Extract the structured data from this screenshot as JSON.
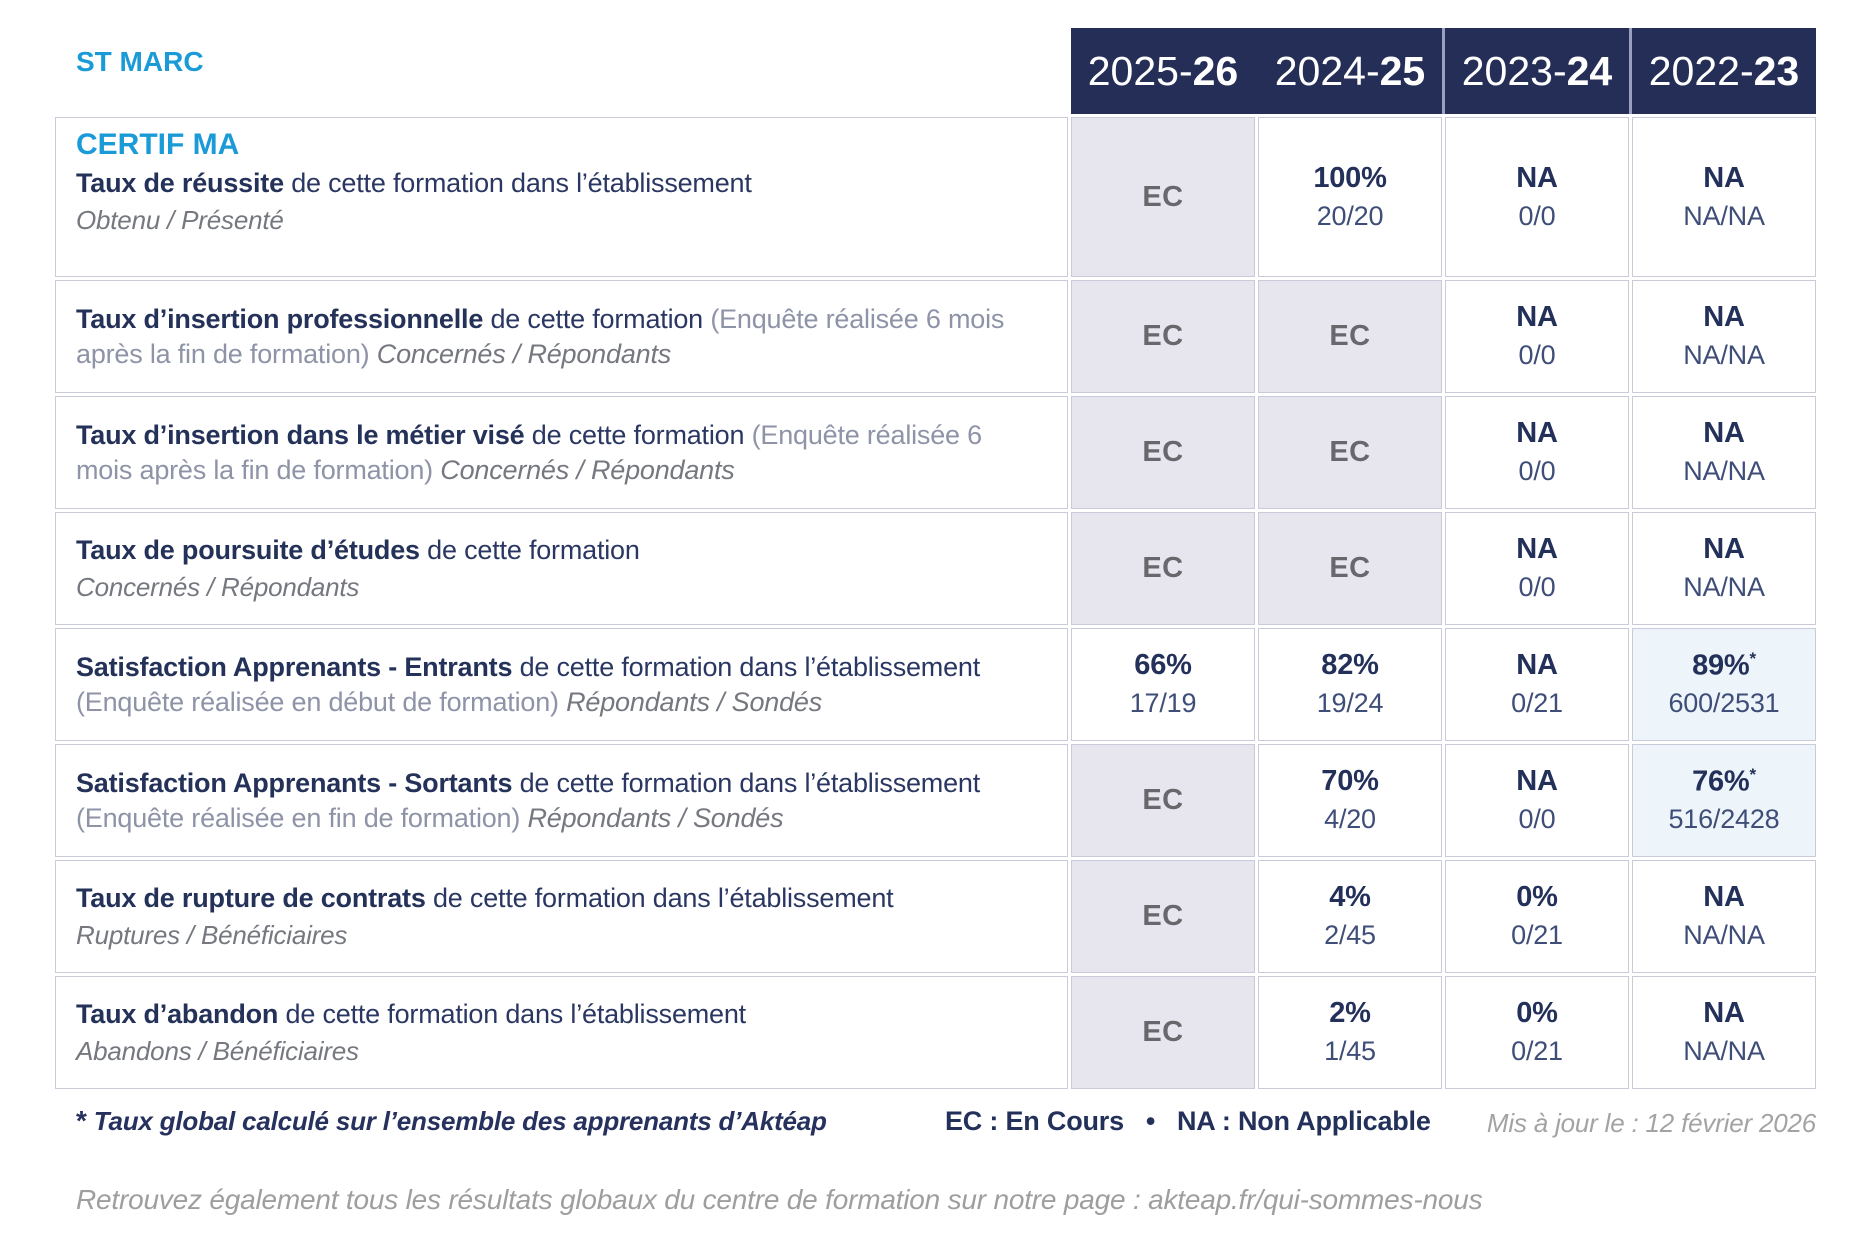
{
  "site_label": "ST MARC",
  "program_label": "CERTIF MA",
  "years": [
    {
      "prefix": "2025-",
      "suffix": "26"
    },
    {
      "prefix": "2024-",
      "suffix": "25"
    },
    {
      "prefix": "2023-",
      "suffix": "24"
    },
    {
      "prefix": "2022-",
      "suffix": "23"
    }
  ],
  "rows": [
    {
      "title_bold": "Taux de réussite",
      "title_rest": "de cette formation dans l’établissement",
      "subtitle_block": "Obtenu / Présenté",
      "cells": [
        {
          "main": "EC"
        },
        {
          "main": "100%",
          "sub": "20/20"
        },
        {
          "main": "NA",
          "sub": "0/0"
        },
        {
          "main": "NA",
          "sub": "NA/NA"
        }
      ]
    },
    {
      "title_bold": "Taux d’insertion professionnelle",
      "title_rest": "de cette formation",
      "paren": "(Enquête réalisée 6 mois après la fin de formation)",
      "subtitle_inline": "Concernés / Répondants",
      "cells": [
        {
          "main": "EC"
        },
        {
          "main": "EC"
        },
        {
          "main": "NA",
          "sub": "0/0"
        },
        {
          "main": "NA",
          "sub": "NA/NA"
        }
      ]
    },
    {
      "title_bold": "Taux d’insertion dans le métier visé",
      "title_rest": "de cette formation",
      "paren": "(Enquête réalisée 6 mois après la fin de formation)",
      "subtitle_inline": "Concernés / Répondants",
      "cells": [
        {
          "main": "EC"
        },
        {
          "main": "EC"
        },
        {
          "main": "NA",
          "sub": "0/0"
        },
        {
          "main": "NA",
          "sub": "NA/NA"
        }
      ]
    },
    {
      "title_bold": "Taux de poursuite d’études",
      "title_rest": "de cette formation",
      "subtitle_block": "Concernés / Répondants",
      "cells": [
        {
          "main": "EC"
        },
        {
          "main": "EC"
        },
        {
          "main": "NA",
          "sub": "0/0"
        },
        {
          "main": "NA",
          "sub": "NA/NA"
        }
      ]
    },
    {
      "title_bold": "Satisfaction Apprenants - Entrants",
      "title_rest": "de cette formation dans l’établissement",
      "paren": "(Enquête réalisée en début de formation)",
      "subtitle_inline": "Répondants / Sondés",
      "cells": [
        {
          "main": "66%",
          "sub": "17/19"
        },
        {
          "main": "82%",
          "sub": "19/24"
        },
        {
          "main": "NA",
          "sub": "0/21"
        },
        {
          "main": "89%",
          "star": "*",
          "sub": "600/2531"
        }
      ]
    },
    {
      "title_bold": "Satisfaction Apprenants - Sortants",
      "title_rest": "de cette formation dans l’établissement",
      "paren": "(Enquête réalisée en fin de formation)",
      "subtitle_inline": "Répondants / Sondés",
      "cells": [
        {
          "main": "EC"
        },
        {
          "main": "70%",
          "sub": "4/20"
        },
        {
          "main": "NA",
          "sub": "0/0"
        },
        {
          "main": "76%",
          "star": "*",
          "sub": "516/2428"
        }
      ]
    },
    {
      "title_bold": "Taux de rupture de contrats",
      "title_rest": "de cette formation dans l’établissement",
      "subtitle_block": "Ruptures / Bénéficiaires",
      "cells": [
        {
          "main": "EC"
        },
        {
          "main": "4%",
          "sub": "2/45"
        },
        {
          "main": "0%",
          "sub": "0/21"
        },
        {
          "main": "NA",
          "sub": "NA/NA"
        }
      ]
    },
    {
      "title_bold": "Taux d’abandon",
      "title_rest": "de cette formation dans l’établissement",
      "subtitle_block": "Abandons / Bénéficiaires",
      "cells": [
        {
          "main": "EC"
        },
        {
          "main": "2%",
          "sub": "1/45"
        },
        {
          "main": "0%",
          "sub": "0/21"
        },
        {
          "main": "NA",
          "sub": "NA/NA"
        }
      ]
    }
  ],
  "footnote": {
    "star": "*",
    "text": "Taux global calculé sur l’ensemble des apprenants d’Aktéap"
  },
  "legend": "EC : En Cours   •   NA : Non Applicable",
  "updated": "Mis à jour le : 12 février 2026",
  "bottom_note": "Retrouvez également tous les résultats globaux du centre de formation sur notre page : akteap.fr/qui-sommes-nous",
  "colors": {
    "accent_blue": "#1a9bd7",
    "header_navy": "#242e56",
    "value_navy": "#233059",
    "fraction_navy": "#3f4e78",
    "ec_gray": "#68686c",
    "lavender_bg": "#e7e6ee",
    "lightblue_bg": "#eef5fa",
    "cell_border": "#c9cbd8",
    "muted_gray": "#9e9e9e"
  }
}
